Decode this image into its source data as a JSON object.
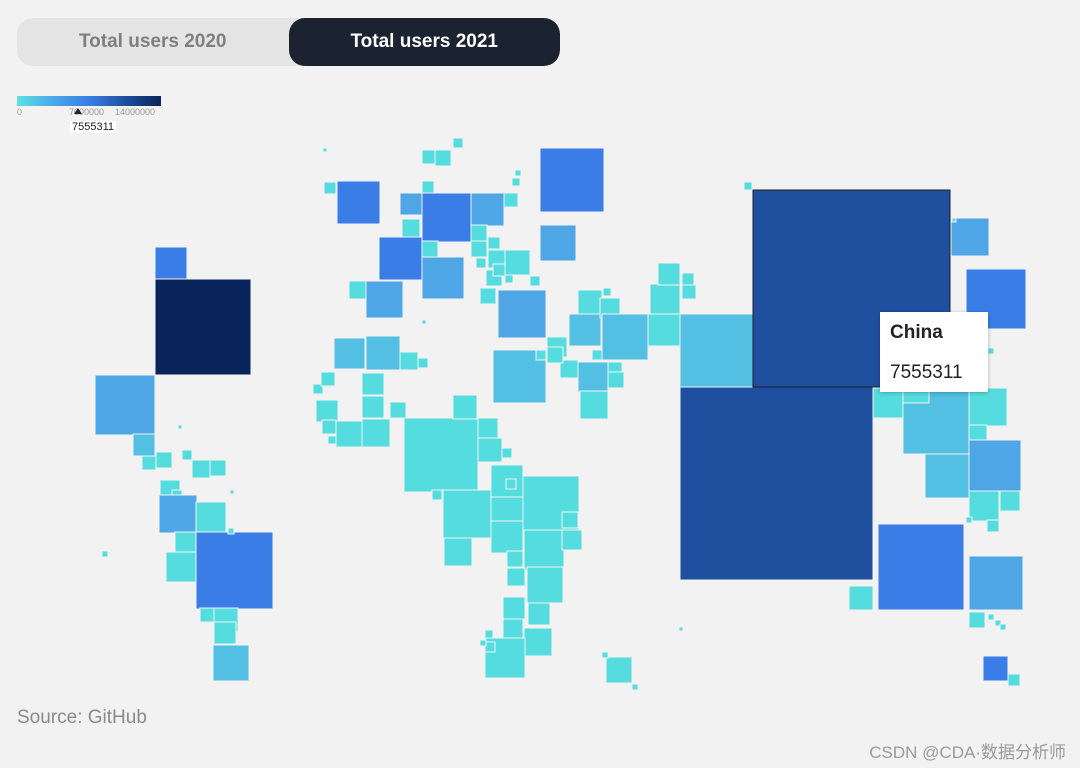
{
  "tabs": [
    {
      "label": "Total users 2020",
      "active": false
    },
    {
      "label": "Total users 2021",
      "active": true
    }
  ],
  "legend": {
    "ticks": [
      "0",
      "7000000",
      "14000000"
    ],
    "min": 0,
    "max": 14000000,
    "selected_value": "7555311",
    "colors": [
      "#5ee0e0",
      "#4aa8e8",
      "#3a7fe4",
      "#1f4fa0",
      "#0a2456"
    ]
  },
  "tooltip": {
    "name": "China",
    "value": "7555311"
  },
  "source": "Source: GitHub",
  "watermark": "CSDN @CDA·数据分析师",
  "colors": {
    "background": "#f2f2f2",
    "tab_active_bg": "#1b2331",
    "tab_inactive_bg": "#e4e4e4",
    "highlight_border": "#222222"
  }
}
